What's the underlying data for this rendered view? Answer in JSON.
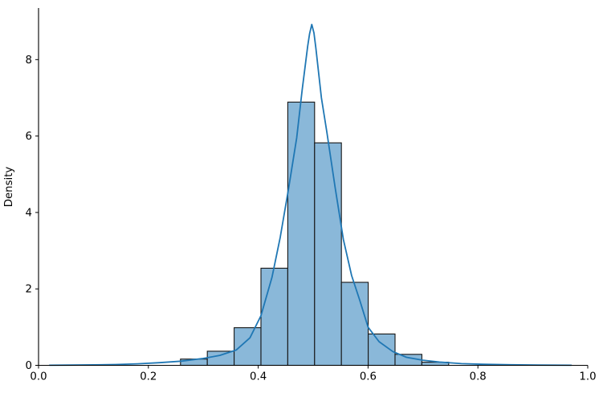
{
  "chart_data": {
    "type": "histogram",
    "overlay": "kde-line",
    "title": "",
    "xlabel": "",
    "ylabel": "Density",
    "xlim": [
      0.0,
      1.0
    ],
    "ylim": [
      0.0,
      9.35
    ],
    "grid": false,
    "legend": null,
    "spines": [
      "left",
      "bottom"
    ],
    "xtick_values": [
      0.0,
      0.2,
      0.4,
      0.6,
      0.8,
      1.0
    ],
    "xtick_labels": [
      "0.0",
      "0.2",
      "0.4",
      "0.6",
      "0.8",
      "1.0"
    ],
    "ytick_values": [
      0,
      2,
      4,
      6,
      8
    ],
    "ytick_labels": [
      "0",
      "2",
      "4",
      "6",
      "8"
    ],
    "bins": {
      "edges": [
        0.2585,
        0.3073,
        0.3562,
        0.405,
        0.4538,
        0.5027,
        0.5515,
        0.6003,
        0.6491,
        0.698,
        0.7468
      ],
      "densities": [
        0.164,
        0.369,
        0.984,
        2.542,
        6.888,
        5.822,
        2.173,
        0.82,
        0.287,
        0.082
      ]
    },
    "kde_curve": {
      "x": [
        0.02,
        0.06,
        0.1,
        0.14,
        0.18,
        0.22,
        0.26,
        0.3,
        0.33,
        0.36,
        0.385,
        0.405,
        0.425,
        0.44,
        0.455,
        0.47,
        0.48,
        0.49,
        0.4935,
        0.4975,
        0.5015,
        0.505,
        0.515,
        0.525,
        0.54,
        0.555,
        0.57,
        0.585,
        0.6,
        0.62,
        0.645,
        0.67,
        0.7,
        0.73,
        0.77,
        0.81,
        0.86,
        0.91,
        0.97
      ],
      "y": [
        0.002,
        0.006,
        0.012,
        0.022,
        0.04,
        0.07,
        0.11,
        0.18,
        0.26,
        0.4,
        0.72,
        1.3,
        2.3,
        3.35,
        4.6,
        5.95,
        7.2,
        8.35,
        8.68,
        8.92,
        8.7,
        8.3,
        7.0,
        6.1,
        4.65,
        3.3,
        2.35,
        1.7,
        1.0,
        0.62,
        0.36,
        0.21,
        0.135,
        0.085,
        0.045,
        0.027,
        0.014,
        0.007,
        0.002
      ]
    },
    "colors": {
      "bar_fill": "#8ab8d9",
      "bar_edge": "#151515",
      "kde_line": "#1f77b4",
      "axis": "#000000",
      "text": "#000000",
      "background": "#ffffff"
    }
  }
}
